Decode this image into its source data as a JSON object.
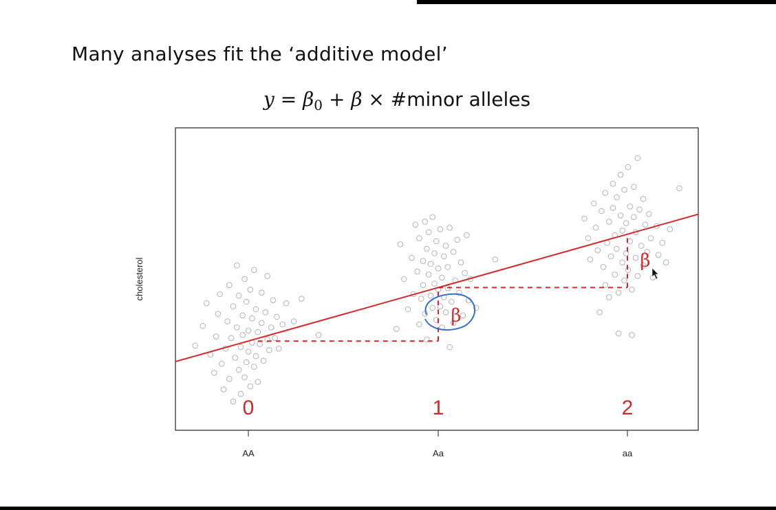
{
  "slide": {
    "heading": "Many analyses fit the ‘additive model’",
    "equation": {
      "lhs": "y",
      "equals": "=",
      "beta0": "β",
      "beta0_sub": "0",
      "plus": "+",
      "beta": "β",
      "times": "×",
      "term": "#minor alleles"
    }
  },
  "chart_data": {
    "type": "scatter",
    "title": "",
    "xlabel": "",
    "ylabel": "cholesterol",
    "categories": [
      "AA",
      "Aa",
      "aa"
    ],
    "allele_counts": [
      "0",
      "1",
      "2"
    ],
    "beta_label": "β",
    "grid": false,
    "ylim": [
      0,
      100
    ],
    "fit_line": {
      "intercept": 29.5,
      "slope": 17.7,
      "color": "#d62728"
    },
    "group_means": [
      29.5,
      47.2,
      64.9
    ],
    "series": [
      {
        "values": [
          [
            -0.28,
            28.0
          ],
          [
            -0.24,
            34.5
          ],
          [
            -0.22,
            42.0
          ],
          [
            -0.2,
            25.0
          ],
          [
            -0.18,
            19.0
          ],
          [
            -0.17,
            31.0
          ],
          [
            -0.16,
            38.5
          ],
          [
            -0.15,
            45.0
          ],
          [
            -0.14,
            22.0
          ],
          [
            -0.13,
            13.5
          ],
          [
            -0.12,
            27.0
          ],
          [
            -0.11,
            36.0
          ],
          [
            -0.1,
            48.0
          ],
          [
            -0.1,
            17.0
          ],
          [
            -0.09,
            30.5
          ],
          [
            -0.08,
            41.0
          ],
          [
            -0.08,
            9.5
          ],
          [
            -0.07,
            24.0
          ],
          [
            -0.06,
            34.0
          ],
          [
            -0.06,
            54.5
          ],
          [
            -0.05,
            20.0
          ],
          [
            -0.05,
            44.5
          ],
          [
            -0.04,
            27.5
          ],
          [
            -0.04,
            12.0
          ],
          [
            -0.03,
            38.0
          ],
          [
            -0.03,
            31.5
          ],
          [
            -0.02,
            50.0
          ],
          [
            -0.02,
            17.5
          ],
          [
            -0.01,
            22.5
          ],
          [
            -0.01,
            42.5
          ],
          [
            0.0,
            33.0
          ],
          [
            0.0,
            26.0
          ],
          [
            0.01,
            14.5
          ],
          [
            0.01,
            46.5
          ],
          [
            0.02,
            29.0
          ],
          [
            0.02,
            37.0
          ],
          [
            0.03,
            21.0
          ],
          [
            0.03,
            53.0
          ],
          [
            0.04,
            24.5
          ],
          [
            0.04,
            40.0
          ],
          [
            0.05,
            32.5
          ],
          [
            0.05,
            16.0
          ],
          [
            0.06,
            28.5
          ],
          [
            0.07,
            45.5
          ],
          [
            0.07,
            35.5
          ],
          [
            0.08,
            23.0
          ],
          [
            0.09,
            39.0
          ],
          [
            0.1,
            30.0
          ],
          [
            0.1,
            51.0
          ],
          [
            0.11,
            26.5
          ],
          [
            0.12,
            34.0
          ],
          [
            0.13,
            43.0
          ],
          [
            0.14,
            30.5
          ],
          [
            0.15,
            37.5
          ],
          [
            0.16,
            27.0
          ],
          [
            0.18,
            35.0
          ],
          [
            0.2,
            42.0
          ],
          [
            0.24,
            36.0
          ],
          [
            0.28,
            43.5
          ],
          [
            0.37,
            31.5
          ]
        ]
      },
      {
        "values": [
          [
            0.78,
            33.5
          ],
          [
            0.8,
            61.5
          ],
          [
            0.82,
            50.0
          ],
          [
            0.84,
            40.0
          ],
          [
            0.86,
            57.0
          ],
          [
            0.87,
            45.0
          ],
          [
            0.88,
            68.0
          ],
          [
            0.89,
            52.5
          ],
          [
            0.9,
            35.0
          ],
          [
            0.9,
            63.5
          ],
          [
            0.91,
            43.5
          ],
          [
            0.92,
            56.0
          ],
          [
            0.92,
            48.0
          ],
          [
            0.93,
            69.0
          ],
          [
            0.93,
            38.5
          ],
          [
            0.94,
            60.0
          ],
          [
            0.94,
            30.0
          ],
          [
            0.95,
            51.5
          ],
          [
            0.95,
            65.5
          ],
          [
            0.96,
            44.5
          ],
          [
            0.96,
            55.0
          ],
          [
            0.97,
            40.5
          ],
          [
            0.97,
            70.5
          ],
          [
            0.98,
            48.5
          ],
          [
            0.98,
            58.5
          ],
          [
            0.99,
            36.5
          ],
          [
            0.99,
            62.5
          ],
          [
            1.0,
            46.5
          ],
          [
            1.0,
            53.5
          ],
          [
            1.01,
            41.0
          ],
          [
            1.01,
            66.5
          ],
          [
            1.02,
            50.5
          ],
          [
            1.02,
            34.0
          ],
          [
            1.03,
            57.5
          ],
          [
            1.03,
            44.0
          ],
          [
            1.04,
            61.0
          ],
          [
            1.04,
            39.0
          ],
          [
            1.05,
            54.0
          ],
          [
            1.05,
            47.0
          ],
          [
            1.06,
            67.0
          ],
          [
            1.06,
            27.5
          ],
          [
            1.07,
            42.5
          ],
          [
            1.08,
            59.0
          ],
          [
            1.08,
            35.5
          ],
          [
            1.09,
            49.5
          ],
          [
            1.1,
            63.0
          ],
          [
            1.11,
            45.5
          ],
          [
            1.12,
            55.5
          ],
          [
            1.13,
            38.0
          ],
          [
            1.14,
            52.0
          ],
          [
            1.15,
            64.5
          ],
          [
            1.16,
            43.0
          ],
          [
            1.17,
            50.0
          ],
          [
            1.2,
            40.5
          ],
          [
            1.3,
            56.5
          ]
        ]
      },
      {
        "values": [
          [
            1.77,
            70.0
          ],
          [
            1.79,
            63.5
          ],
          [
            1.8,
            56.5
          ],
          [
            1.82,
            75.0
          ],
          [
            1.83,
            67.0
          ],
          [
            1.84,
            59.5
          ],
          [
            1.85,
            39.0
          ],
          [
            1.86,
            72.5
          ],
          [
            1.87,
            54.0
          ],
          [
            1.88,
            78.5
          ],
          [
            1.88,
            48.0
          ],
          [
            1.89,
            62.0
          ],
          [
            1.9,
            69.0
          ],
          [
            1.9,
            44.0
          ],
          [
            1.91,
            57.5
          ],
          [
            1.92,
            81.5
          ],
          [
            1.92,
            73.5
          ],
          [
            1.93,
            64.5
          ],
          [
            1.93,
            51.5
          ],
          [
            1.94,
            77.0
          ],
          [
            1.94,
            60.0
          ],
          [
            1.95,
            32.0
          ],
          [
            1.95,
            45.5
          ],
          [
            1.96,
            71.0
          ],
          [
            1.96,
            84.5
          ],
          [
            1.97,
            55.5
          ],
          [
            1.97,
            66.0
          ],
          [
            1.98,
            49.5
          ],
          [
            1.98,
            79.5
          ],
          [
            1.99,
            58.5
          ],
          [
            1.99,
            68.5
          ],
          [
            2.0,
            87.0
          ],
          [
            2.0,
            53.0
          ],
          [
            2.01,
            74.0
          ],
          [
            2.01,
            62.5
          ],
          [
            2.02,
            31.5
          ],
          [
            2.02,
            46.5
          ],
          [
            2.03,
            70.5
          ],
          [
            2.03,
            80.5
          ],
          [
            2.04,
            57.0
          ],
          [
            2.04,
            65.5
          ],
          [
            2.05,
            51.0
          ],
          [
            2.05,
            90.0
          ],
          [
            2.06,
            73.0
          ],
          [
            2.07,
            61.0
          ],
          [
            2.08,
            54.5
          ],
          [
            2.08,
            76.5
          ],
          [
            2.09,
            68.0
          ],
          [
            2.1,
            59.0
          ],
          [
            2.11,
            71.5
          ],
          [
            2.12,
            63.5
          ],
          [
            2.13,
            50.5
          ],
          [
            2.15,
            67.5
          ],
          [
            2.16,
            58.0
          ],
          [
            2.18,
            62.0
          ],
          [
            2.2,
            55.5
          ],
          [
            2.22,
            66.5
          ],
          [
            2.27,
            80.0
          ]
        ]
      }
    ]
  }
}
